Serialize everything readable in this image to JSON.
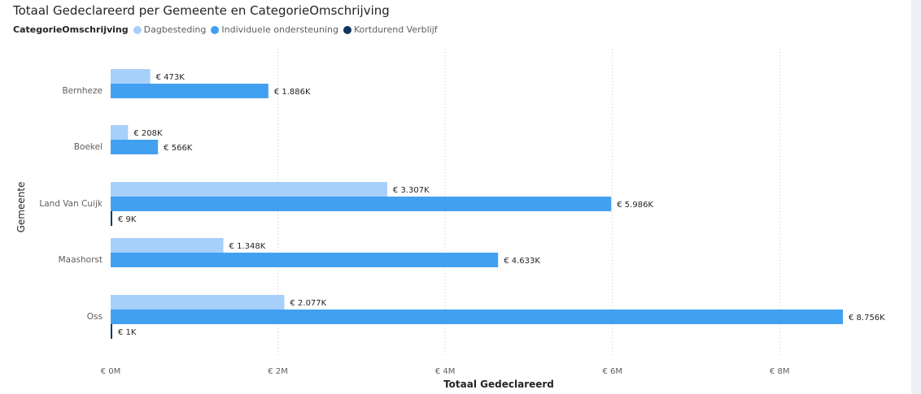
{
  "chart_data": {
    "type": "bar",
    "orientation": "horizontal",
    "title": "Totaal Gedeclareerd per Gemeente en CategorieOmschrijving",
    "legend_title": "CategorieOmschrijving",
    "legend_position": "top-left",
    "xlabel": "Totaal Gedeclareerd",
    "ylabel": "Gemeente",
    "xlim": [
      0,
      9000000
    ],
    "grid": true,
    "x_ticks": [
      0,
      2000000,
      4000000,
      6000000,
      8000000
    ],
    "x_tick_labels": [
      "€ 0M",
      "€ 2M",
      "€ 4M",
      "€ 6M",
      "€ 8M"
    ],
    "categories": [
      "Bernheze",
      "Boekel",
      "Land Van Cuijk",
      "Maashorst",
      "Oss"
    ],
    "series": [
      {
        "name": "Dagbesteding",
        "color": "#a6d0fa",
        "values": [
          473000,
          208000,
          3307000,
          1348000,
          2077000
        ],
        "labels": [
          "€ 473K",
          "€ 208K",
          "€ 3.307K",
          "€ 1.348K",
          "€ 2.077K"
        ]
      },
      {
        "name": "Individuele ondersteuning",
        "color": "#42a0f0",
        "values": [
          1886000,
          566000,
          5986000,
          4633000,
          8756000
        ],
        "labels": [
          "€ 1.886K",
          "€ 566K",
          "€ 5.986K",
          "€ 4.633K",
          "€ 8.756K"
        ]
      },
      {
        "name": "Kortdurend Verblijf",
        "color": "#12375e",
        "values": [
          null,
          null,
          9000,
          null,
          1000
        ],
        "labels": [
          null,
          null,
          "€ 9K",
          null,
          "€ 1K"
        ]
      }
    ]
  }
}
